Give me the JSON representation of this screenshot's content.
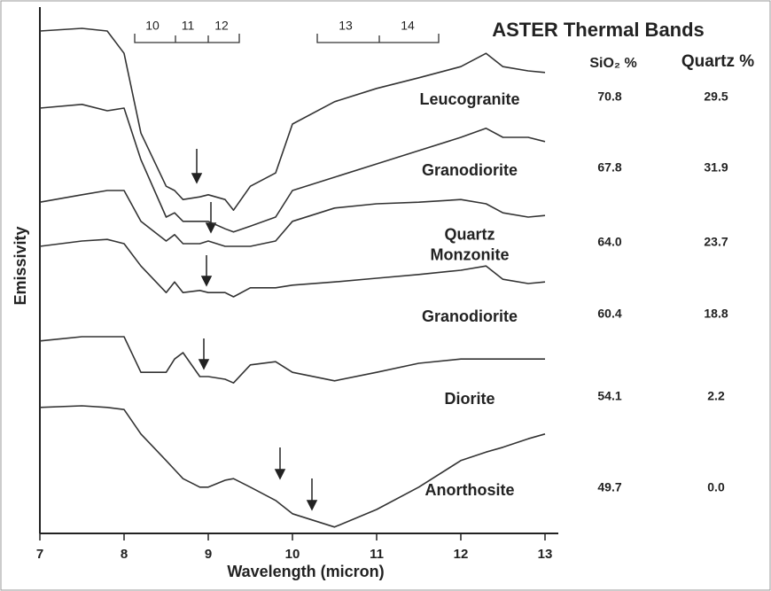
{
  "chart_data": {
    "type": "line",
    "title": "ASTER Thermal Bands",
    "bands": [
      "10",
      "11",
      "12",
      "13",
      "14"
    ],
    "xlabel": "Wavelength (micron)",
    "ylabel": "Emissivity",
    "xlim": [
      7,
      13
    ],
    "xticks": [
      7,
      8,
      9,
      10,
      11,
      12,
      13
    ],
    "ylim": [
      0,
      100
    ],
    "x": [
      7,
      7.5,
      7.8,
      8,
      8.2,
      8.5,
      8.6,
      8.7,
      8.9,
      9,
      9.2,
      9.3,
      9.5,
      9.8,
      10,
      10.5,
      11,
      11.5,
      12,
      12.3,
      12.5,
      12.8,
      13
    ],
    "series": [
      {
        "name": "Leucogranite",
        "color": "#333333",
        "values": [
          94.5,
          95,
          94.5,
          90.3,
          75.3,
          65.3,
          64.5,
          62.8,
          63.3,
          63.7,
          62.8,
          60.8,
          65.3,
          67.8,
          77,
          81.2,
          83.7,
          85.7,
          87.8,
          90.3,
          87.8,
          87,
          86.7
        ]
      },
      {
        "name": "Granodiorite",
        "color": "#333333",
        "values": [
          80,
          80.7,
          79.5,
          80,
          70.3,
          59.5,
          60.3,
          58.7,
          58.7,
          58.7,
          57.3,
          56.7,
          57.8,
          59.5,
          64.5,
          67,
          69.5,
          72,
          74.5,
          76.2,
          74.5,
          74.5,
          73.7
        ]
      },
      {
        "name": "Quartz Monzonite",
        "color": "#333333",
        "values": [
          62.3,
          63.7,
          64.5,
          64.5,
          58.7,
          55,
          56.2,
          54.5,
          54.5,
          55,
          54,
          54,
          54,
          55,
          58.7,
          61.2,
          62,
          62.3,
          62.8,
          62,
          60.3,
          59.5,
          59.8
        ]
      },
      {
        "name": "Granodiorite",
        "color": "#333333",
        "values": [
          54,
          55,
          55.3,
          54.5,
          50.3,
          45.3,
          47.3,
          45.3,
          45.7,
          45.3,
          45.3,
          44.5,
          46.2,
          46.2,
          46.7,
          47.3,
          48,
          48.7,
          49.5,
          50.3,
          47.8,
          47,
          47.3
        ]
      },
      {
        "name": "Diorite",
        "color": "#333333",
        "values": [
          36.2,
          37,
          37,
          37,
          30.3,
          30.3,
          32.8,
          34,
          29.5,
          29.5,
          29,
          28.3,
          31.7,
          32.3,
          30.3,
          28.7,
          30.3,
          32,
          32.8,
          32.8,
          32.8,
          32.8,
          32.8
        ]
      },
      {
        "name": "Anorthosite",
        "color": "#333333",
        "values": [
          23.7,
          24,
          23.7,
          23.3,
          18.7,
          13.7,
          12,
          10.3,
          8.7,
          8.7,
          10,
          10.3,
          8.7,
          6.2,
          3.7,
          1.2,
          4.5,
          8.7,
          13.7,
          15.3,
          16.2,
          17.8,
          18.7
        ]
      }
    ],
    "sio2_header": "SiO₂ %",
    "quartz_header": "Quartz %",
    "sio2": [
      "70.8",
      "67.8",
      "64.0",
      "60.4",
      "54.1",
      "49.7"
    ],
    "quartz": [
      "29.5",
      "31.9",
      "23.7",
      "18.8",
      "2.2",
      "0.0"
    ]
  }
}
